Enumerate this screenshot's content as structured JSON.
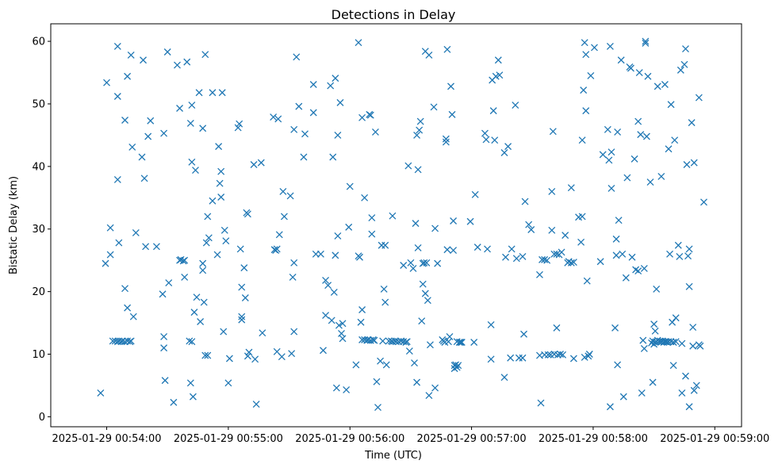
{
  "chart_data": {
    "type": "scatter",
    "title": "Detections in Delay",
    "xlabel": "Time (UTC)",
    "ylabel": "Bistatic Delay (km)",
    "marker": "x",
    "color": "#1f77b4",
    "x_unit": "minutes since 2025-01-29 00:54:00",
    "xlim": [
      -0.46,
      5.22
    ],
    "ylim": [
      -1.6,
      62.8
    ],
    "xticks": [
      {
        "value": 0,
        "label": "2025-01-29 00:54:00"
      },
      {
        "value": 1,
        "label": "2025-01-29 00:55:00"
      },
      {
        "value": 2,
        "label": "2025-01-29 00:56:00"
      },
      {
        "value": 3,
        "label": "2025-01-29 00:57:00"
      },
      {
        "value": 4,
        "label": "2025-01-29 00:58:00"
      },
      {
        "value": 5,
        "label": "2025-01-29 00:59:00"
      }
    ],
    "yticks": [
      {
        "value": 0,
        "label": "0"
      },
      {
        "value": 10,
        "label": "10"
      },
      {
        "value": 20,
        "label": "20"
      },
      {
        "value": 30,
        "label": "30"
      },
      {
        "value": 40,
        "label": "40"
      },
      {
        "value": 50,
        "label": "50"
      },
      {
        "value": 60,
        "label": "60"
      }
    ],
    "points": [
      [
        -0.05,
        3.8
      ],
      [
        -0.01,
        24.5
      ],
      [
        0.0,
        53.4
      ],
      [
        0.03,
        30.2
      ],
      [
        0.03,
        25.9
      ],
      [
        0.05,
        12.1
      ],
      [
        0.07,
        12.1
      ],
      [
        0.09,
        12.0
      ],
      [
        0.1,
        12.1
      ],
      [
        0.12,
        12.0
      ],
      [
        0.13,
        12.1
      ],
      [
        0.15,
        12.0
      ],
      [
        0.17,
        12.1
      ],
      [
        0.19,
        12.0
      ],
      [
        0.2,
        12.1
      ],
      [
        0.09,
        59.2
      ],
      [
        0.09,
        51.2
      ],
      [
        0.09,
        37.9
      ],
      [
        0.1,
        27.8
      ],
      [
        0.15,
        47.4
      ],
      [
        0.15,
        20.5
      ],
      [
        0.17,
        54.4
      ],
      [
        0.17,
        17.4
      ],
      [
        0.2,
        57.8
      ],
      [
        0.21,
        43.1
      ],
      [
        0.22,
        16.0
      ],
      [
        0.24,
        29.4
      ],
      [
        0.29,
        41.5
      ],
      [
        0.3,
        57.0
      ],
      [
        0.31,
        38.1
      ],
      [
        0.32,
        27.2
      ],
      [
        0.34,
        44.8
      ],
      [
        0.36,
        47.3
      ],
      [
        0.41,
        27.2
      ],
      [
        0.46,
        19.6
      ],
      [
        0.47,
        45.3
      ],
      [
        0.47,
        12.8
      ],
      [
        0.47,
        11.0
      ],
      [
        0.48,
        5.8
      ],
      [
        0.5,
        58.3
      ],
      [
        0.51,
        21.4
      ],
      [
        0.55,
        2.3
      ],
      [
        0.58,
        56.2
      ],
      [
        0.6,
        49.3
      ],
      [
        0.6,
        25.0
      ],
      [
        0.61,
        25.1
      ],
      [
        0.63,
        24.9
      ],
      [
        0.64,
        25.0
      ],
      [
        0.64,
        22.3
      ],
      [
        0.66,
        56.7
      ],
      [
        0.68,
        12.1
      ],
      [
        0.69,
        46.9
      ],
      [
        0.7,
        49.8
      ],
      [
        0.7,
        40.7
      ],
      [
        0.7,
        12.0
      ],
      [
        0.71,
        3.2
      ],
      [
        0.69,
        5.4
      ],
      [
        0.73,
        39.4
      ],
      [
        0.72,
        16.7
      ],
      [
        0.74,
        19.1
      ],
      [
        0.76,
        51.8
      ],
      [
        0.77,
        15.2
      ],
      [
        0.79,
        46.1
      ],
      [
        0.79,
        24.5
      ],
      [
        0.79,
        23.4
      ],
      [
        0.81,
        57.9
      ],
      [
        0.8,
        18.3
      ],
      [
        0.81,
        9.8
      ],
      [
        0.82,
        27.8
      ],
      [
        0.83,
        9.8
      ],
      [
        0.83,
        32.0
      ],
      [
        0.84,
        28.6
      ],
      [
        0.87,
        51.8
      ],
      [
        0.87,
        34.5
      ],
      [
        0.91,
        25.9
      ],
      [
        0.92,
        43.2
      ],
      [
        0.93,
        37.3
      ],
      [
        0.94,
        35.1
      ],
      [
        0.94,
        39.2
      ],
      [
        0.95,
        51.8
      ],
      [
        0.96,
        13.6
      ],
      [
        0.97,
        29.8
      ],
      [
        0.98,
        28.1
      ],
      [
        1.0,
        5.4
      ],
      [
        1.01,
        9.3
      ],
      [
        1.08,
        46.2
      ],
      [
        1.09,
        46.8
      ],
      [
        1.1,
        26.8
      ],
      [
        1.11,
        16.0
      ],
      [
        1.11,
        20.7
      ],
      [
        1.11,
        15.5
      ],
      [
        1.13,
        23.8
      ],
      [
        1.14,
        19.0
      ],
      [
        1.15,
        32.6
      ],
      [
        1.16,
        32.4
      ],
      [
        1.16,
        9.7
      ],
      [
        1.17,
        10.3
      ],
      [
        1.21,
        40.3
      ],
      [
        1.22,
        9.2
      ],
      [
        1.23,
        2.0
      ],
      [
        1.27,
        40.6
      ],
      [
        1.28,
        13.4
      ],
      [
        1.37,
        47.9
      ],
      [
        1.38,
        26.7
      ],
      [
        1.39,
        26.6
      ],
      [
        1.4,
        26.8
      ],
      [
        1.4,
        10.4
      ],
      [
        1.41,
        47.6
      ],
      [
        1.42,
        29.1
      ],
      [
        1.44,
        9.6
      ],
      [
        1.45,
        36.0
      ],
      [
        1.46,
        32.0
      ],
      [
        1.51,
        35.3
      ],
      [
        1.52,
        10.1
      ],
      [
        1.53,
        22.3
      ],
      [
        1.54,
        13.6
      ],
      [
        1.54,
        24.6
      ],
      [
        1.54,
        45.9
      ],
      [
        1.56,
        57.5
      ],
      [
        1.58,
        49.6
      ],
      [
        1.62,
        41.5
      ],
      [
        1.63,
        45.2
      ],
      [
        1.7,
        53.1
      ],
      [
        1.7,
        48.6
      ],
      [
        1.72,
        26.0
      ],
      [
        1.76,
        26.0
      ],
      [
        1.78,
        10.6
      ],
      [
        1.8,
        21.8
      ],
      [
        1.8,
        16.2
      ],
      [
        1.82,
        21.0
      ],
      [
        1.84,
        52.9
      ],
      [
        1.85,
        15.4
      ],
      [
        1.86,
        41.5
      ],
      [
        1.87,
        19.9
      ],
      [
        1.88,
        54.1
      ],
      [
        1.88,
        25.8
      ],
      [
        1.89,
        4.6
      ],
      [
        1.9,
        45.0
      ],
      [
        1.9,
        28.9
      ],
      [
        1.91,
        14.6
      ],
      [
        1.92,
        50.2
      ],
      [
        1.93,
        13.3
      ],
      [
        1.94,
        14.9
      ],
      [
        1.94,
        12.5
      ],
      [
        1.97,
        4.3
      ],
      [
        1.99,
        30.3
      ],
      [
        2.0,
        36.8
      ],
      [
        2.05,
        8.3
      ],
      [
        2.07,
        59.8
      ],
      [
        2.07,
        25.7
      ],
      [
        2.08,
        25.5
      ],
      [
        2.09,
        15.1
      ],
      [
        2.1,
        47.8
      ],
      [
        2.1,
        17.1
      ],
      [
        2.12,
        35.0
      ],
      [
        2.1,
        12.3
      ],
      [
        2.12,
        12.3
      ],
      [
        2.14,
        12.2
      ],
      [
        2.15,
        12.3
      ],
      [
        2.17,
        12.2
      ],
      [
        2.19,
        12.3
      ],
      [
        2.2,
        12.2
      ],
      [
        2.16,
        48.3
      ],
      [
        2.17,
        48.2
      ],
      [
        2.18,
        31.8
      ],
      [
        2.18,
        29.2
      ],
      [
        2.21,
        45.5
      ],
      [
        2.22,
        5.6
      ],
      [
        2.23,
        1.5
      ],
      [
        2.25,
        8.9
      ],
      [
        2.26,
        27.4
      ],
      [
        2.27,
        12.1
      ],
      [
        2.28,
        20.4
      ],
      [
        2.29,
        18.3
      ],
      [
        2.29,
        27.4
      ],
      [
        2.3,
        8.3
      ],
      [
        2.35,
        32.1
      ],
      [
        2.32,
        12.1
      ],
      [
        2.34,
        12.1
      ],
      [
        2.35,
        12.0
      ],
      [
        2.37,
        12.1
      ],
      [
        2.38,
        12.0
      ],
      [
        2.4,
        12.0
      ],
      [
        2.42,
        12.1
      ],
      [
        2.44,
        12.0
      ],
      [
        2.46,
        11.9
      ],
      [
        2.47,
        12.0
      ],
      [
        2.44,
        24.2
      ],
      [
        2.48,
        40.1
      ],
      [
        2.49,
        10.5
      ],
      [
        2.5,
        24.6
      ],
      [
        2.52,
        23.7
      ],
      [
        2.53,
        8.6
      ],
      [
        2.54,
        30.9
      ],
      [
        2.55,
        45.0
      ],
      [
        2.55,
        5.5
      ],
      [
        2.56,
        39.5
      ],
      [
        2.56,
        27.0
      ],
      [
        2.57,
        45.8
      ],
      [
        2.58,
        47.2
      ],
      [
        2.59,
        15.3
      ],
      [
        2.6,
        24.5
      ],
      [
        2.6,
        21.2
      ],
      [
        2.61,
        24.6
      ],
      [
        2.62,
        19.7
      ],
      [
        2.62,
        58.4
      ],
      [
        2.63,
        24.6
      ],
      [
        2.64,
        18.6
      ],
      [
        2.65,
        3.4
      ],
      [
        2.65,
        57.8
      ],
      [
        2.66,
        11.5
      ],
      [
        2.69,
        49.5
      ],
      [
        2.7,
        30.1
      ],
      [
        2.7,
        4.6
      ],
      [
        2.72,
        24.5
      ],
      [
        2.76,
        12.3
      ],
      [
        2.77,
        12.1
      ],
      [
        2.78,
        11.9
      ],
      [
        2.79,
        44.4
      ],
      [
        2.79,
        43.9
      ],
      [
        2.8,
        58.7
      ],
      [
        2.8,
        26.7
      ],
      [
        2.81,
        12.0
      ],
      [
        2.82,
        12.8
      ],
      [
        2.83,
        52.8
      ],
      [
        2.84,
        48.3
      ],
      [
        2.85,
        31.3
      ],
      [
        2.85,
        26.6
      ],
      [
        2.86,
        8.2
      ],
      [
        2.86,
        7.7
      ],
      [
        2.87,
        8.3
      ],
      [
        2.88,
        12.0
      ],
      [
        2.88,
        7.9
      ],
      [
        2.89,
        8.2
      ],
      [
        2.9,
        11.9
      ],
      [
        2.91,
        11.9
      ],
      [
        2.92,
        11.9
      ],
      [
        2.99,
        31.2
      ],
      [
        3.02,
        11.9
      ],
      [
        3.03,
        35.5
      ],
      [
        3.05,
        27.1
      ],
      [
        3.11,
        45.3
      ],
      [
        3.12,
        44.3
      ],
      [
        3.13,
        26.8
      ],
      [
        3.16,
        14.7
      ],
      [
        3.16,
        9.2
      ],
      [
        3.17,
        53.8
      ],
      [
        3.18,
        48.9
      ],
      [
        3.19,
        44.2
      ],
      [
        3.2,
        54.4
      ],
      [
        3.22,
        57.0
      ],
      [
        3.23,
        54.6
      ],
      [
        3.27,
        42.2
      ],
      [
        3.27,
        6.3
      ],
      [
        3.28,
        25.5
      ],
      [
        3.3,
        43.2
      ],
      [
        3.32,
        9.4
      ],
      [
        3.33,
        26.8
      ],
      [
        3.36,
        49.8
      ],
      [
        3.37,
        25.3
      ],
      [
        3.39,
        9.4
      ],
      [
        3.42,
        25.6
      ],
      [
        3.42,
        9.4
      ],
      [
        3.44,
        34.4
      ],
      [
        3.43,
        13.2
      ],
      [
        3.47,
        30.7
      ],
      [
        3.49,
        29.9
      ],
      [
        3.56,
        22.7
      ],
      [
        3.58,
        25.1
      ],
      [
        3.6,
        25.1
      ],
      [
        3.62,
        25.0
      ],
      [
        3.57,
        2.2
      ],
      [
        3.56,
        9.8
      ],
      [
        3.6,
        9.9
      ],
      [
        3.63,
        9.9
      ],
      [
        3.65,
        9.9
      ],
      [
        3.68,
        10.0
      ],
      [
        3.66,
        29.8
      ],
      [
        3.66,
        36.0
      ],
      [
        3.67,
        45.6
      ],
      [
        3.68,
        26.0
      ],
      [
        3.7,
        14.2
      ],
      [
        3.7,
        26.0
      ],
      [
        3.71,
        9.9
      ],
      [
        3.72,
        25.9
      ],
      [
        3.73,
        10.0
      ],
      [
        3.74,
        26.3
      ],
      [
        3.75,
        9.9
      ],
      [
        3.77,
        29.0
      ],
      [
        3.79,
        24.6
      ],
      [
        3.8,
        24.8
      ],
      [
        3.82,
        24.6
      ],
      [
        3.82,
        36.6
      ],
      [
        3.84,
        9.3
      ],
      [
        3.84,
        24.7
      ],
      [
        3.88,
        31.9
      ],
      [
        3.91,
        32.0
      ],
      [
        3.9,
        27.9
      ],
      [
        3.91,
        44.2
      ],
      [
        3.92,
        52.2
      ],
      [
        3.93,
        9.5
      ],
      [
        3.93,
        59.8
      ],
      [
        3.94,
        57.9
      ],
      [
        3.94,
        48.9
      ],
      [
        3.95,
        21.7
      ],
      [
        3.96,
        9.7
      ],
      [
        3.97,
        10.0
      ],
      [
        3.98,
        54.5
      ],
      [
        4.01,
        59.0
      ],
      [
        4.06,
        24.8
      ],
      [
        4.08,
        41.9
      ],
      [
        4.13,
        41.0
      ],
      [
        4.12,
        45.9
      ],
      [
        4.14,
        59.2
      ],
      [
        4.14,
        1.6
      ],
      [
        4.15,
        42.3
      ],
      [
        4.15,
        36.5
      ],
      [
        4.18,
        14.2
      ],
      [
        4.19,
        25.8
      ],
      [
        4.19,
        28.4
      ],
      [
        4.2,
        8.3
      ],
      [
        4.2,
        45.5
      ],
      [
        4.21,
        31.4
      ],
      [
        4.23,
        57.0
      ],
      [
        4.24,
        26.0
      ],
      [
        4.25,
        3.2
      ],
      [
        4.27,
        22.2
      ],
      [
        4.28,
        38.2
      ],
      [
        4.3,
        55.9
      ],
      [
        4.31,
        55.7
      ],
      [
        4.32,
        25.5
      ],
      [
        4.34,
        41.2
      ],
      [
        4.35,
        23.5
      ],
      [
        4.37,
        23.3
      ],
      [
        4.37,
        47.2
      ],
      [
        4.38,
        55.0
      ],
      [
        4.39,
        45.1
      ],
      [
        4.4,
        3.8
      ],
      [
        4.41,
        12.2
      ],
      [
        4.42,
        10.9
      ],
      [
        4.42,
        23.7
      ],
      [
        4.43,
        59.7
      ],
      [
        4.43,
        60.0
      ],
      [
        4.44,
        44.8
      ],
      [
        4.45,
        54.4
      ],
      [
        4.48,
        11.8
      ],
      [
        4.49,
        12.1
      ],
      [
        4.5,
        11.6
      ],
      [
        4.51,
        11.9
      ],
      [
        4.52,
        12.0
      ],
      [
        4.53,
        12.2
      ],
      [
        4.54,
        12.0
      ],
      [
        4.55,
        12.1
      ],
      [
        4.56,
        12.0
      ],
      [
        4.57,
        12.1
      ],
      [
        4.58,
        11.9
      ],
      [
        4.59,
        12.0
      ],
      [
        4.6,
        12.0
      ],
      [
        4.61,
        11.9
      ],
      [
        4.62,
        12.0
      ],
      [
        4.64,
        12.0
      ],
      [
        4.66,
        11.9
      ],
      [
        4.68,
        12.0
      ],
      [
        4.47,
        37.5
      ],
      [
        4.49,
        5.5
      ],
      [
        4.5,
        14.8
      ],
      [
        4.51,
        13.7
      ],
      [
        4.52,
        20.4
      ],
      [
        4.53,
        52.8
      ],
      [
        4.56,
        38.4
      ],
      [
        4.59,
        53.1
      ],
      [
        4.62,
        42.8
      ],
      [
        4.63,
        26.0
      ],
      [
        4.64,
        49.9
      ],
      [
        4.65,
        15.1
      ],
      [
        4.66,
        8.2
      ],
      [
        4.67,
        44.2
      ],
      [
        4.68,
        15.8
      ],
      [
        4.7,
        27.4
      ],
      [
        4.71,
        25.6
      ],
      [
        4.72,
        55.4
      ],
      [
        4.73,
        11.7
      ],
      [
        4.73,
        3.8
      ],
      [
        4.75,
        56.3
      ],
      [
        4.76,
        58.8
      ],
      [
        4.76,
        6.5
      ],
      [
        4.77,
        40.3
      ],
      [
        4.78,
        25.7
      ],
      [
        4.79,
        26.8
      ],
      [
        4.79,
        20.8
      ],
      [
        4.79,
        1.6
      ],
      [
        4.81,
        47.0
      ],
      [
        4.82,
        11.3
      ],
      [
        4.82,
        14.3
      ],
      [
        4.83,
        40.6
      ],
      [
        4.83,
        4.2
      ],
      [
        4.85,
        5.0
      ],
      [
        4.87,
        11.5
      ],
      [
        4.87,
        51.0
      ],
      [
        4.88,
        11.3
      ],
      [
        4.91,
        34.3
      ]
    ]
  }
}
